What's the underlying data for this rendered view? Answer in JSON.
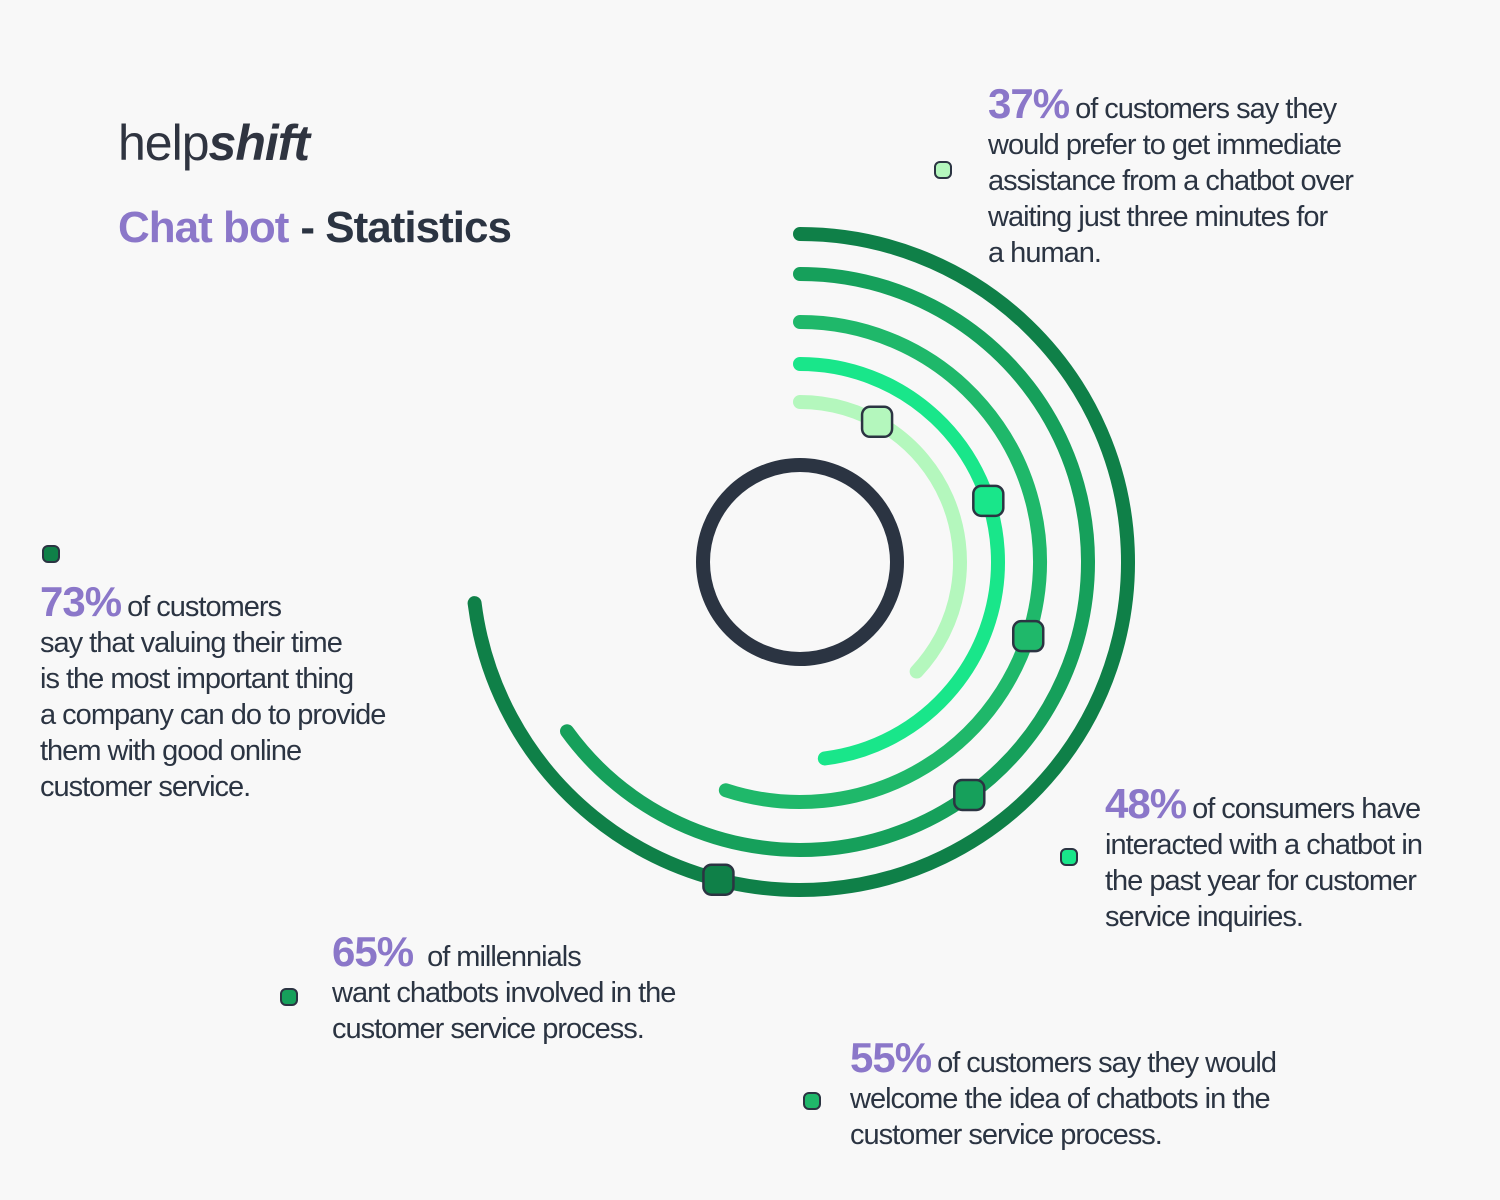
{
  "brand": {
    "part1": "help",
    "part2": "shift"
  },
  "title": {
    "highlight": "Chat bot",
    "rest": "- Statistics"
  },
  "stats": [
    {
      "pct": "37%",
      "first": "of customers say they",
      "lines": [
        "would prefer to get immediate",
        "assistance from a chatbot over",
        "waiting just three minutes for",
        "a human."
      ]
    },
    {
      "pct": "48%",
      "first": "of consumers have",
      "lines": [
        "interacted with a chatbot in",
        "the past year for customer",
        "service inquiries."
      ]
    },
    {
      "pct": "55%",
      "first": "of customers say they would",
      "lines": [
        "welcome the idea of chatbots in the",
        "customer service process."
      ]
    },
    {
      "pct": "65%",
      "first": "of millennials",
      "lines": [
        "want chatbots involved in the",
        "customer service process."
      ]
    },
    {
      "pct": "73%",
      "first": "of customers",
      "lines": [
        "say that valuing their time",
        "is the most important thing",
        "a company can do to provide",
        "them with good online",
        "customer service."
      ]
    }
  ],
  "colors": {
    "background": "#f8f8f8",
    "accent_purple": "#8b77c9",
    "dark": "#2b3442",
    "ring_37": "#b4f7bd",
    "ring_48": "#19e68a",
    "ring_55": "#1fb86a",
    "ring_65": "#16a05b",
    "ring_73": "#0f8048"
  },
  "chart_data": {
    "type": "radial-bar",
    "categories": [
      "37%",
      "48%",
      "55%",
      "65%",
      "73%"
    ],
    "values": [
      37,
      48,
      55,
      65,
      73
    ],
    "unit": "%",
    "max": 100
  }
}
